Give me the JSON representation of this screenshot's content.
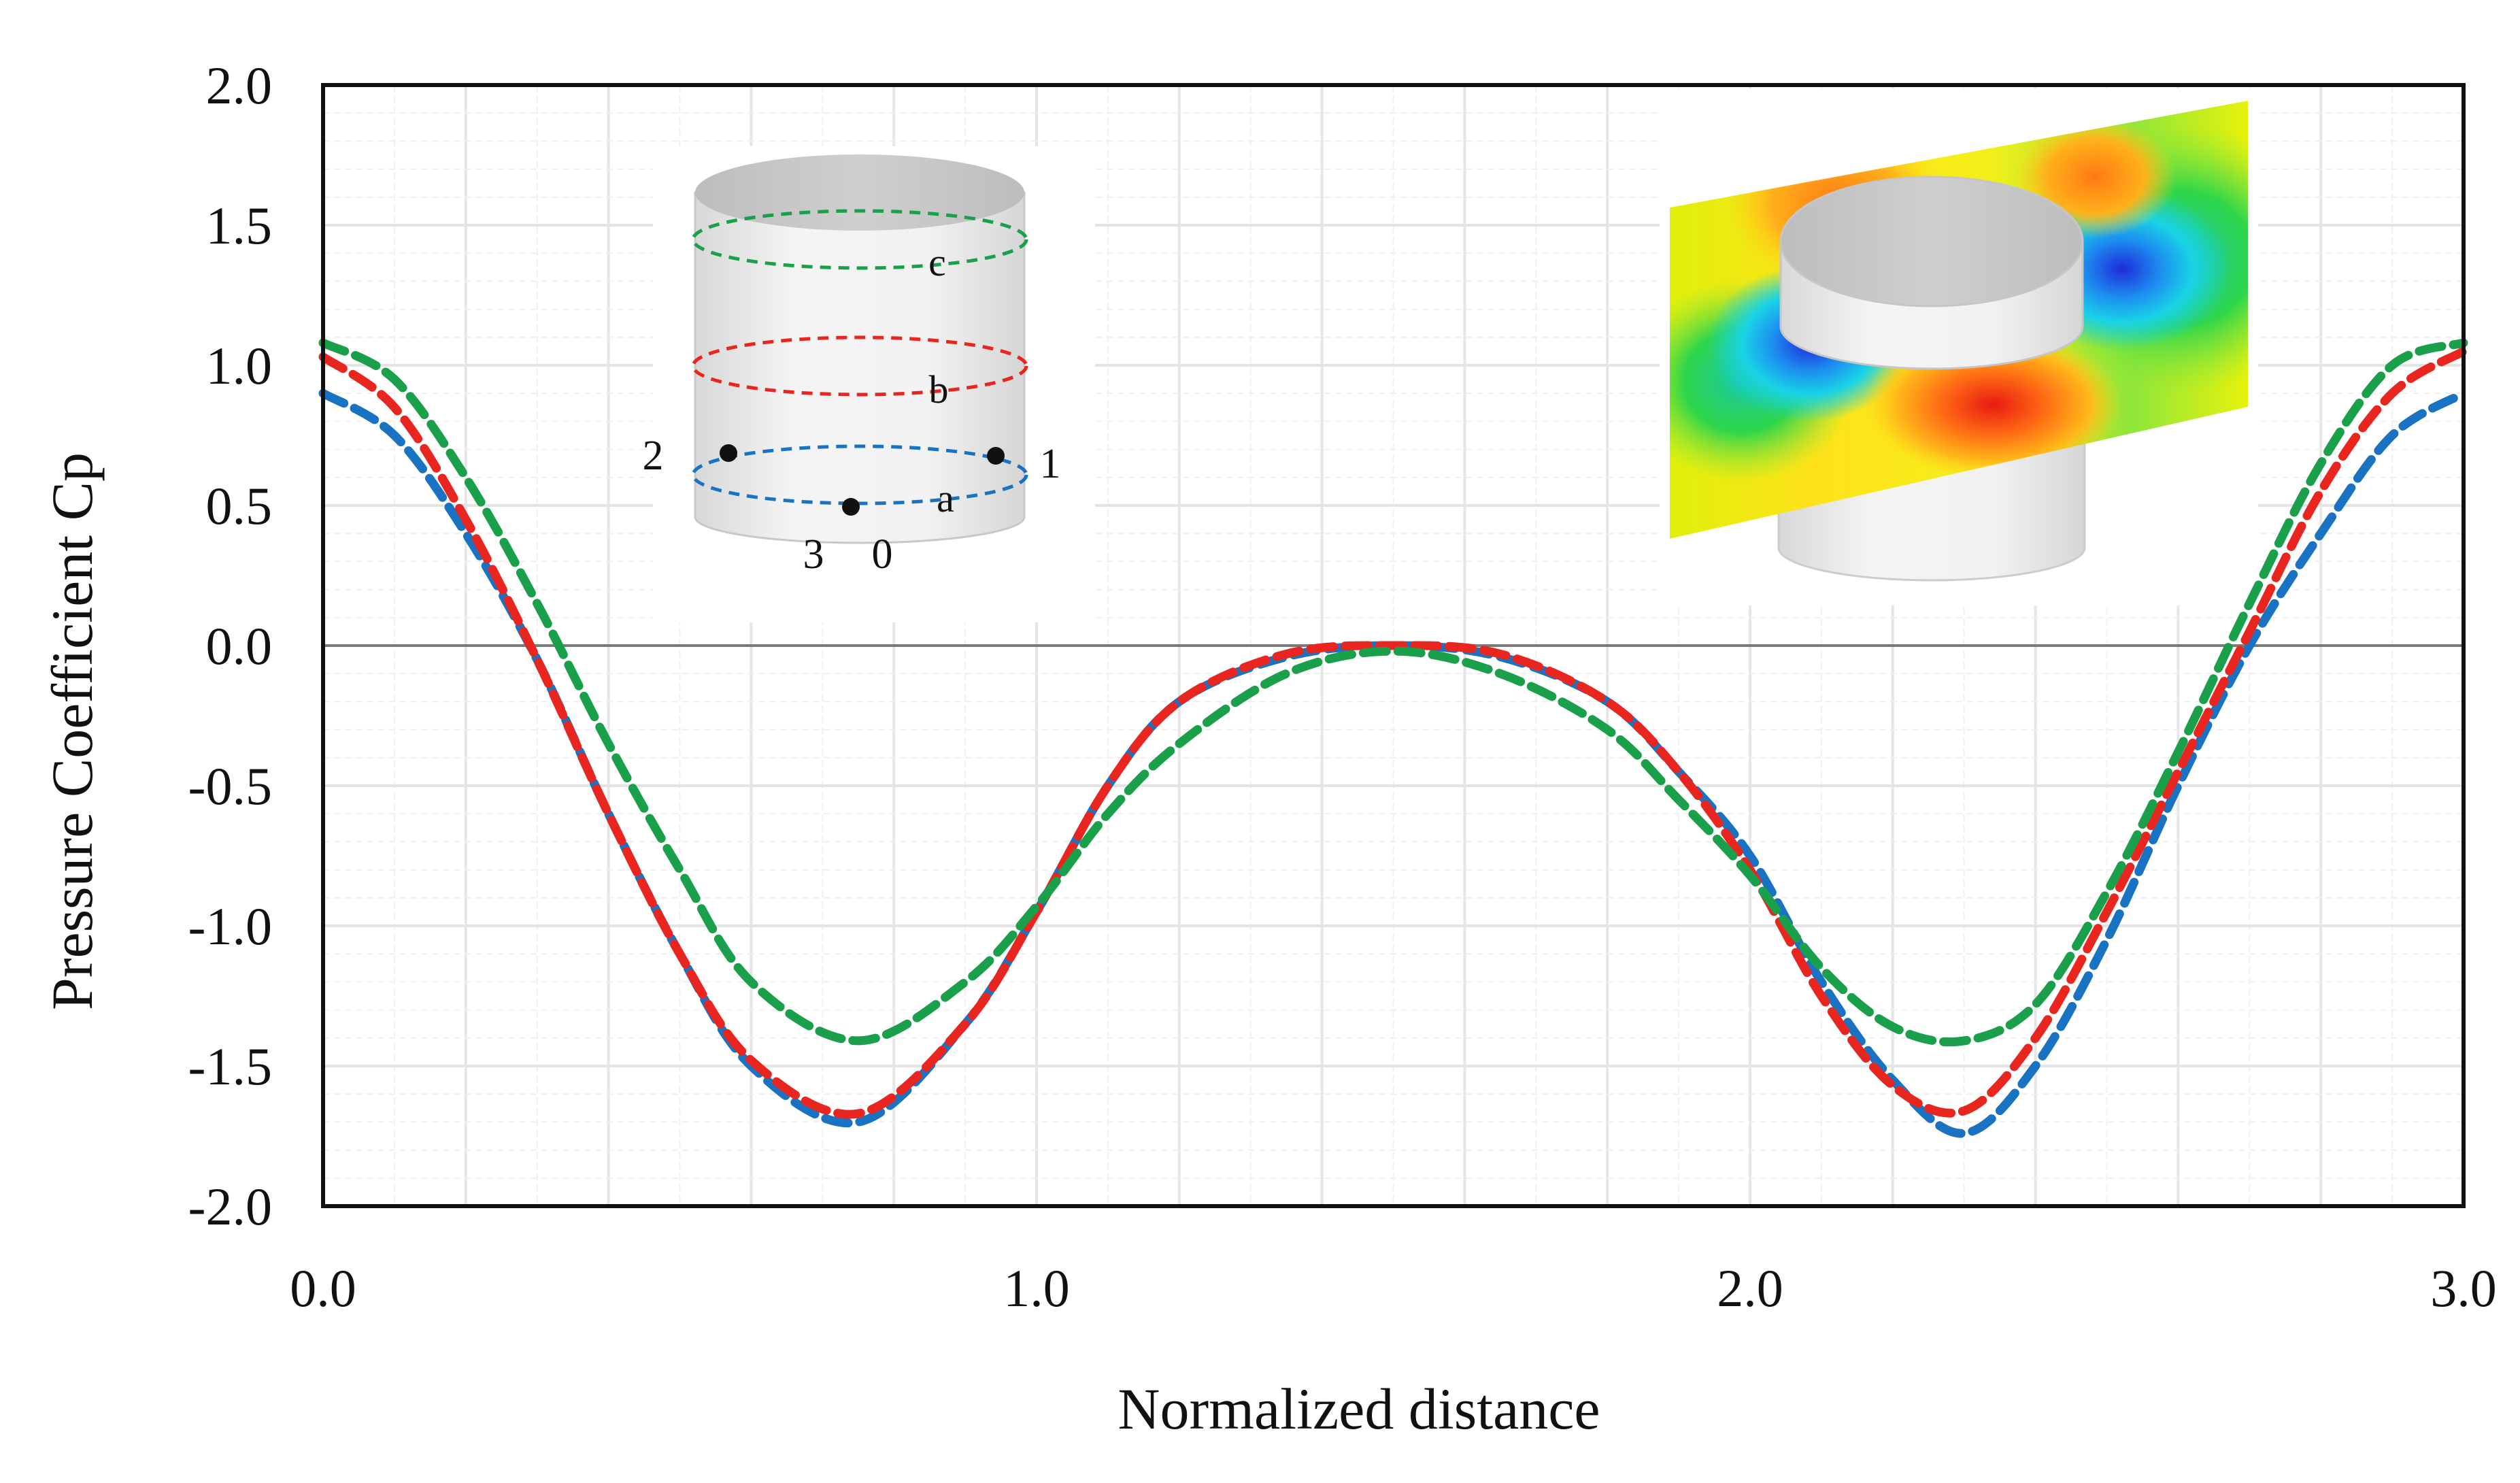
{
  "chart_data": {
    "type": "line",
    "title": "",
    "xlabel": "Normalized distance",
    "ylabel": "Pressure Coefficient Cp",
    "xlim": [
      0.0,
      3.0
    ],
    "ylim": [
      -2.0,
      2.0
    ],
    "x_ticks": [
      0.0,
      1.0,
      2.0,
      3.0
    ],
    "x_tick_labels": [
      "0.0",
      "1.0",
      "2.0",
      "3.0"
    ],
    "y_ticks": [
      2.0,
      1.5,
      1.0,
      0.5,
      0.0,
      -0.5,
      -1.0,
      -1.5,
      -2.0
    ],
    "y_tick_labels": [
      "2.0",
      "1.5",
      "1.0",
      "0.5",
      "0.0",
      "-0.5",
      "-1.0",
      "-1.5",
      "-2.0"
    ],
    "grid": true,
    "line_style": "dashed",
    "series": [
      {
        "color": "#1a73c2",
        "x": [
          0.0,
          0.1,
          0.2,
          0.3,
          0.4,
          0.5,
          0.6,
          0.75,
          0.9,
          1.0,
          1.1,
          1.2,
          1.35,
          1.5,
          1.65,
          1.8,
          1.9,
          2.0,
          2.1,
          2.2,
          2.3,
          2.4,
          2.5,
          2.6,
          2.7,
          2.8,
          2.9,
          3.0
        ],
        "y": [
          0.9,
          0.75,
          0.4,
          -0.05,
          -0.6,
          -1.1,
          -1.5,
          -1.7,
          -1.35,
          -0.95,
          -0.5,
          -0.2,
          -0.04,
          0.0,
          -0.04,
          -0.2,
          -0.45,
          -0.75,
          -1.2,
          -1.55,
          -1.74,
          -1.5,
          -1.05,
          -0.5,
          0.0,
          0.4,
          0.75,
          0.9
        ]
      },
      {
        "color": "#e8261f",
        "x": [
          0.0,
          0.1,
          0.2,
          0.3,
          0.4,
          0.5,
          0.6,
          0.75,
          0.9,
          1.0,
          1.1,
          1.2,
          1.35,
          1.5,
          1.65,
          1.8,
          1.9,
          2.0,
          2.1,
          2.2,
          2.3,
          2.4,
          2.5,
          2.6,
          2.7,
          2.8,
          2.9,
          3.0
        ],
        "y": [
          1.03,
          0.85,
          0.45,
          -0.05,
          -0.6,
          -1.1,
          -1.48,
          -1.67,
          -1.35,
          -0.95,
          -0.5,
          -0.2,
          -0.03,
          0.0,
          -0.03,
          -0.2,
          -0.45,
          -0.8,
          -1.25,
          -1.57,
          -1.66,
          -1.4,
          -0.95,
          -0.45,
          0.05,
          0.55,
          0.9,
          1.05
        ]
      },
      {
        "color": "#1aa04a",
        "x": [
          0.0,
          0.1,
          0.2,
          0.3,
          0.4,
          0.5,
          0.6,
          0.75,
          0.9,
          1.0,
          1.1,
          1.2,
          1.35,
          1.5,
          1.65,
          1.8,
          1.9,
          2.0,
          2.1,
          2.2,
          2.3,
          2.4,
          2.5,
          2.6,
          2.7,
          2.8,
          2.9,
          3.0
        ],
        "y": [
          1.08,
          0.95,
          0.6,
          0.15,
          -0.35,
          -0.8,
          -1.2,
          -1.41,
          -1.2,
          -0.93,
          -0.6,
          -0.35,
          -0.1,
          -0.02,
          -0.1,
          -0.3,
          -0.55,
          -0.82,
          -1.15,
          -1.36,
          -1.41,
          -1.28,
          -0.88,
          -0.38,
          0.15,
          0.65,
          1.0,
          1.08
        ]
      }
    ],
    "inset_schematic": {
      "ring_labels": [
        "c",
        "b",
        "a"
      ],
      "ring_colors": [
        "#1aa04a",
        "#e8261f",
        "#1a73c2"
      ],
      "point_labels": [
        "2",
        "1",
        "3",
        "0"
      ]
    }
  }
}
